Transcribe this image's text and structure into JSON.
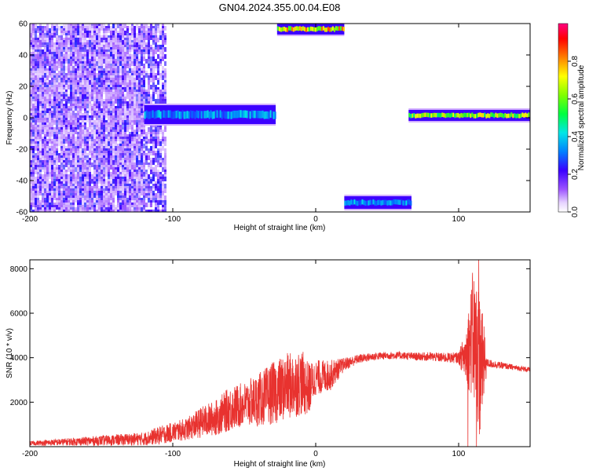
{
  "title": "GN04.2024.355.00.04.E08",
  "colors": {
    "snr_line": "#e8322f",
    "grid_frame": "#000000",
    "low_amp": "#b88cf0",
    "mid_amp": "#2a1bd8",
    "high_amp": "#37e06a"
  },
  "chart_data": [
    {
      "type": "heatmap",
      "xlabel": "Height of straight line (km)",
      "ylabel": "Frequency (Hz)",
      "xlim": [
        -200,
        150
      ],
      "ylim": [
        -60,
        60
      ],
      "xticks": [
        -200,
        -100,
        0,
        100
      ],
      "yticks": [
        -60,
        -40,
        -20,
        0,
        20,
        40,
        60
      ],
      "xtick_labels": [
        "-200",
        "-100",
        "0",
        "100"
      ],
      "ytick_labels": [
        "-60",
        "-40",
        "-20",
        "0",
        "20",
        "40",
        "60"
      ],
      "colorbar": {
        "label": "Normalized spectral amplitude",
        "range": [
          0,
          1
        ],
        "ticks": [
          0.0,
          0.2,
          0.4,
          0.6,
          0.8
        ],
        "tick_labels": [
          "0.0",
          "0.2",
          "0.4",
          "0.6",
          "0.8"
        ]
      },
      "bands": [
        {
          "x": [
            -200,
            -105
          ],
          "freq": [
            -60,
            60
          ],
          "level": 0.15,
          "kind": "noise"
        },
        {
          "x": [
            -120,
            -28
          ],
          "freq": [
            -4,
            8
          ],
          "level": 0.4,
          "kind": "band"
        },
        {
          "x": [
            -27,
            20
          ],
          "freq": [
            53,
            60
          ],
          "level": 0.8,
          "kind": "band"
        },
        {
          "x": [
            20,
            67
          ],
          "freq": [
            -58,
            -50
          ],
          "level": 0.4,
          "kind": "band"
        },
        {
          "x": [
            65,
            150
          ],
          "freq": [
            -2,
            5
          ],
          "level": 0.7,
          "kind": "band"
        }
      ]
    },
    {
      "type": "line",
      "xlabel": "Height of straight line (km)",
      "ylabel": "SNR (10 * v/v)",
      "xlim": [
        -200,
        150
      ],
      "ylim": [
        0,
        8400
      ],
      "xticks": [
        -200,
        -100,
        0,
        100
      ],
      "yticks": [
        2000,
        4000,
        6000,
        8000
      ],
      "xtick_labels": [
        "-200",
        "-100",
        "0",
        "100"
      ],
      "ytick_labels": [
        "2000",
        "4000",
        "6000",
        "8000"
      ],
      "series": [
        {
          "x": [
            -200,
            -180,
            -160,
            -140,
            -120,
            -110,
            -100,
            -90,
            -80,
            -70,
            -60,
            -50,
            -40,
            -30,
            -20,
            -10,
            -5,
            0,
            10,
            20,
            30,
            40,
            50,
            60,
            70,
            80,
            90,
            100,
            105,
            110,
            115,
            120,
            130,
            140,
            150
          ],
          "y": [
            150,
            200,
            250,
            300,
            350,
            500,
            650,
            800,
            1100,
            1300,
            1700,
            1900,
            2100,
            2400,
            2700,
            2900,
            2600,
            3100,
            3200,
            3700,
            3950,
            4050,
            4100,
            4100,
            4050,
            4050,
            4000,
            4000,
            4100,
            5000,
            3700,
            3750,
            3650,
            3550,
            3450
          ],
          "noise": [
            100,
            150,
            200,
            250,
            300,
            400,
            450,
            500,
            700,
            800,
            1000,
            1000,
            1200,
            1400,
            1500,
            1500,
            1200,
            800,
            700,
            300,
            200,
            180,
            170,
            170,
            180,
            200,
            220,
            250,
            1200,
            3000,
            3500,
            200,
            150,
            120,
            120
          ]
        }
      ]
    }
  ]
}
